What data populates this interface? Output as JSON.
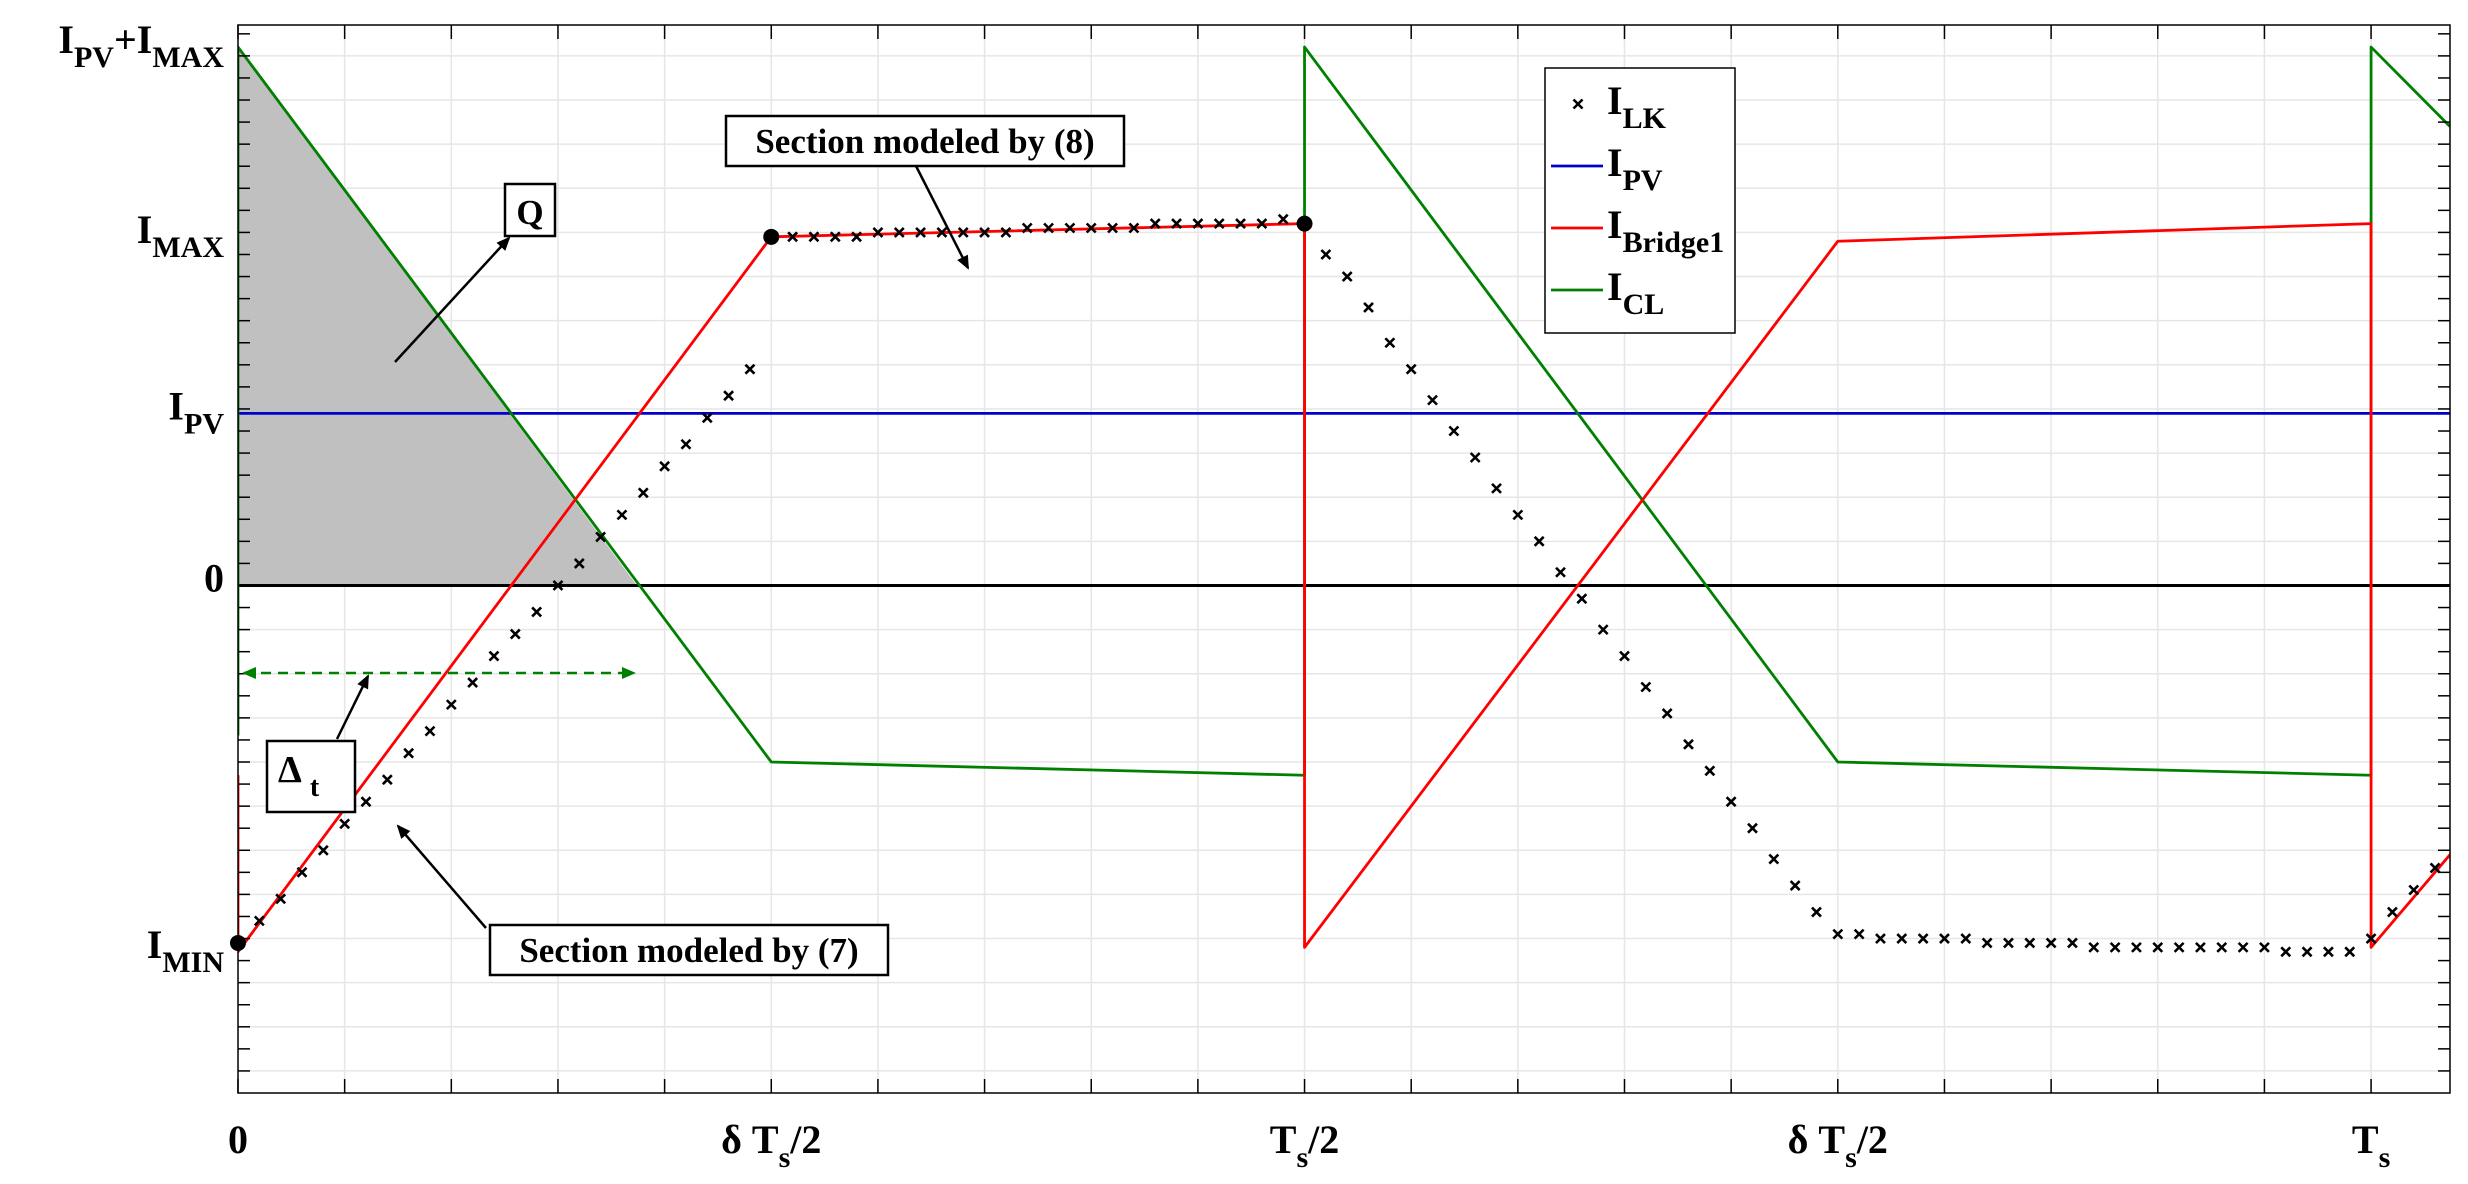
{
  "chart_data": {
    "type": "line",
    "title": "",
    "xlabel": "",
    "ylabel": "",
    "xlim": [
      0,
      1.037
    ],
    "ylim": [
      -1.15,
      1.27
    ],
    "grid": true,
    "legend_position": "top-right",
    "x_ticks": [
      {
        "value": 0,
        "label": "0",
        "sub": ""
      },
      {
        "value": 0.25,
        "label": "δ T",
        "sub": "s",
        "suffix": "/2"
      },
      {
        "value": 0.5,
        "label": "T",
        "sub": "s",
        "suffix": "/2"
      },
      {
        "value": 0.75,
        "label": "δ T",
        "sub": "s",
        "suffix": "/2"
      },
      {
        "value": 1.0,
        "label": "T",
        "sub": "s",
        "suffix": ""
      }
    ],
    "y_ticks": [
      {
        "value": 1.22,
        "parts": [
          {
            "t": "I"
          },
          {
            "t": "PV",
            "sub": true
          },
          {
            "t": "+I"
          },
          {
            "t": "MAX",
            "sub": true
          }
        ]
      },
      {
        "value": 0.79,
        "parts": [
          {
            "t": "I"
          },
          {
            "t": "MAX",
            "sub": true
          }
        ]
      },
      {
        "value": 0.39,
        "parts": [
          {
            "t": "I"
          },
          {
            "t": "PV",
            "sub": true
          }
        ]
      },
      {
        "value": 0.0,
        "parts": [
          {
            "t": "0"
          }
        ]
      },
      {
        "value": -0.83,
        "parts": [
          {
            "t": "I"
          },
          {
            "t": "MIN",
            "sub": true
          }
        ]
      }
    ],
    "series": [
      {
        "name": "I_LK",
        "legend": {
          "main": "I",
          "sub": "LK"
        },
        "style": "markers",
        "color": "#000000",
        "x": [
          0,
          0.01,
          0.02,
          0.03,
          0.04,
          0.05,
          0.06,
          0.07,
          0.08,
          0.09,
          0.1,
          0.11,
          0.12,
          0.13,
          0.14,
          0.15,
          0.16,
          0.17,
          0.18,
          0.19,
          0.2,
          0.21,
          0.22,
          0.23,
          0.24,
          0.25,
          0.26,
          0.27,
          0.28,
          0.29,
          0.3,
          0.31,
          0.32,
          0.33,
          0.34,
          0.35,
          0.36,
          0.37,
          0.38,
          0.39,
          0.4,
          0.41,
          0.42,
          0.43,
          0.44,
          0.45,
          0.46,
          0.47,
          0.48,
          0.49,
          0.5,
          0.51,
          0.52,
          0.53,
          0.54,
          0.55,
          0.56,
          0.57,
          0.58,
          0.59,
          0.6,
          0.61,
          0.62,
          0.63,
          0.64,
          0.65,
          0.66,
          0.67,
          0.68,
          0.69,
          0.7,
          0.71,
          0.72,
          0.73,
          0.74,
          0.75,
          0.76,
          0.77,
          0.78,
          0.79,
          0.8,
          0.81,
          0.82,
          0.83,
          0.84,
          0.85,
          0.86,
          0.87,
          0.88,
          0.89,
          0.9,
          0.91,
          0.92,
          0.93,
          0.94,
          0.95,
          0.96,
          0.97,
          0.98,
          0.99,
          1.0,
          1.01,
          1.02,
          1.03
        ],
        "y": [
          -0.81,
          -0.76,
          -0.71,
          -0.65,
          -0.6,
          -0.54,
          -0.49,
          -0.44,
          -0.38,
          -0.33,
          -0.27,
          -0.22,
          -0.16,
          -0.11,
          -0.06,
          0.0,
          0.05,
          0.11,
          0.16,
          0.21,
          0.27,
          0.32,
          0.38,
          0.43,
          0.49,
          0.79,
          0.79,
          0.79,
          0.79,
          0.79,
          0.8,
          0.8,
          0.8,
          0.8,
          0.8,
          0.8,
          0.8,
          0.81,
          0.81,
          0.81,
          0.81,
          0.81,
          0.81,
          0.82,
          0.82,
          0.82,
          0.82,
          0.82,
          0.82,
          0.83,
          0.82,
          0.75,
          0.7,
          0.63,
          0.55,
          0.49,
          0.42,
          0.35,
          0.29,
          0.22,
          0.16,
          0.1,
          0.03,
          -0.03,
          -0.1,
          -0.16,
          -0.23,
          -0.29,
          -0.36,
          -0.42,
          -0.49,
          -0.55,
          -0.62,
          -0.68,
          -0.74,
          -0.79,
          -0.79,
          -0.8,
          -0.8,
          -0.8,
          -0.8,
          -0.8,
          -0.81,
          -0.81,
          -0.81,
          -0.81,
          -0.81,
          -0.82,
          -0.82,
          -0.82,
          -0.82,
          -0.82,
          -0.82,
          -0.82,
          -0.82,
          -0.82,
          -0.83,
          -0.83,
          -0.83,
          -0.83,
          -0.8,
          -0.74,
          -0.69,
          -0.64
        ]
      },
      {
        "name": "I_PV",
        "legend": {
          "main": "I",
          "sub": "PV"
        },
        "style": "line",
        "color": "#0000cc",
        "x": [
          0,
          1.037
        ],
        "y": [
          0.39,
          0.39
        ]
      },
      {
        "name": "I_Bridge1",
        "legend": {
          "main": "I",
          "sub": "Bridge1"
        },
        "style": "line",
        "color": "#ff0000",
        "x": [
          0,
          0,
          0.25,
          0.5,
          0.5,
          0.75,
          1.0,
          1.0,
          1.037
        ],
        "y": [
          -0.43,
          -0.83,
          0.79,
          0.82,
          -0.82,
          0.78,
          0.82,
          -0.82,
          -0.61
        ]
      },
      {
        "name": "I_CL",
        "legend": {
          "main": "I",
          "sub": "CL"
        },
        "style": "line",
        "color": "#008000",
        "x": [
          0,
          0,
          0.25,
          0.5,
          0.5,
          0.75,
          1.0,
          1.0,
          1.037
        ],
        "y": [
          -0.34,
          1.22,
          -0.4,
          -0.43,
          1.22,
          -0.4,
          -0.43,
          1.22,
          1.04
        ]
      },
      {
        "name": "zero",
        "style": "line",
        "color": "#000000",
        "legend": null,
        "x": [
          0,
          1.037
        ],
        "y": [
          0,
          0
        ]
      }
    ],
    "shaded_region": {
      "color": "#c0c0c0",
      "x": [
        0,
        0,
        0.187
      ],
      "y": [
        0,
        1.22,
        0
      ]
    },
    "highlight_points": [
      {
        "x": 0,
        "y": -0.81
      },
      {
        "x": 0.25,
        "y": 0.79
      },
      {
        "x": 0.5,
        "y": 0.82
      }
    ],
    "annotations": {
      "section8": "Section modeled by (8)",
      "section7": "Section modeled by (7)",
      "q": "Q",
      "delta": {
        "main": "Δ",
        "sub": "t"
      }
    }
  }
}
